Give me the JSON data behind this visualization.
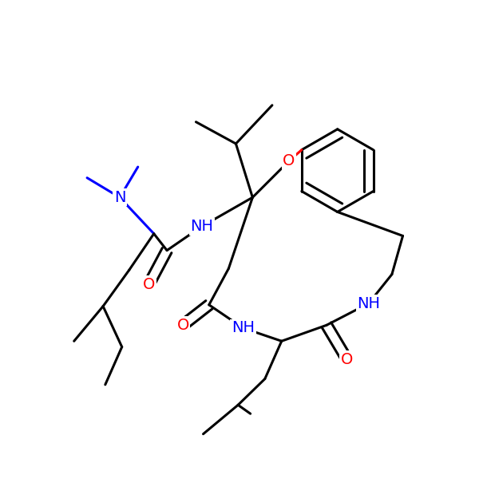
{
  "background": "#ffffff",
  "bond_color": "#000000",
  "N_color": "#0000ff",
  "O_color": "#ff0000",
  "line_width": 2.2,
  "dbo": 0.012,
  "font_size": 14,
  "figsize": [
    6.0,
    6.0
  ],
  "dpi": 100,
  "xlim": [
    -0.05,
    1.05
  ],
  "ylim": [
    -0.05,
    1.05
  ]
}
